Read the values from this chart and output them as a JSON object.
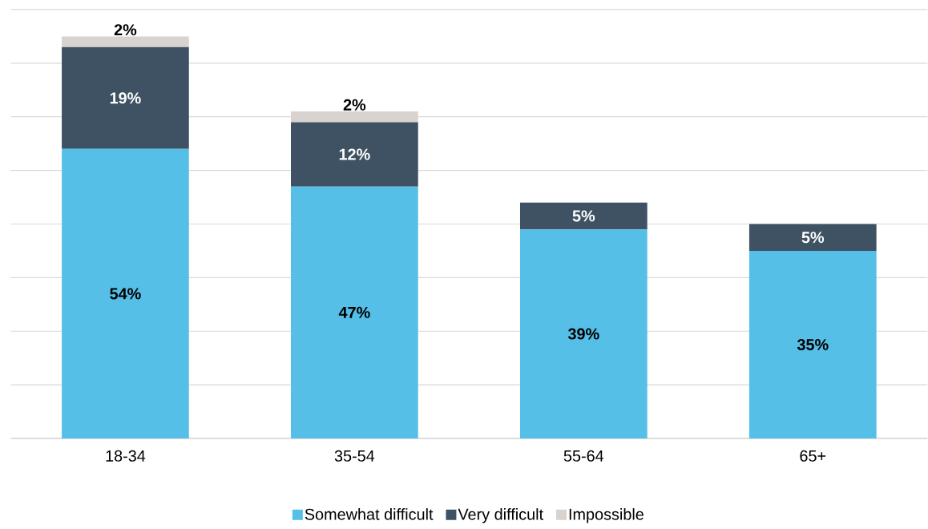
{
  "chart_data": {
    "type": "bar",
    "stacked": true,
    "categories": [
      "18-34",
      "35-54",
      "55-64",
      "65+"
    ],
    "series": [
      {
        "name": "Somewhat difficult",
        "color": "#55bfe8",
        "values": [
          54,
          47,
          39,
          35
        ],
        "value_labels": [
          "54%",
          "47%",
          "39%",
          "35%"
        ]
      },
      {
        "name": "Very difficult",
        "color": "#3f5263",
        "values": [
          19,
          12,
          5,
          5
        ],
        "value_labels": [
          "19%",
          "12%",
          "5%",
          "5%"
        ]
      },
      {
        "name": "Impossible",
        "color": "#d9d3cf",
        "values": [
          2,
          2,
          null,
          null
        ],
        "value_labels": [
          "2%",
          "2%",
          null,
          null
        ]
      }
    ],
    "ylim": [
      0,
      80
    ],
    "yticks": [
      {
        "value": 0,
        "label": null
      },
      {
        "value": 10,
        "label": null
      },
      {
        "value": 20,
        "label": null
      },
      {
        "value": 30,
        "label": null
      },
      {
        "value": 40,
        "label": null
      },
      {
        "value": 50,
        "label": null
      },
      {
        "value": 60,
        "label": null
      },
      {
        "value": 70,
        "label": null
      },
      {
        "value": 80,
        "label": null
      }
    ],
    "grid": "y",
    "legend": "bottom"
  }
}
